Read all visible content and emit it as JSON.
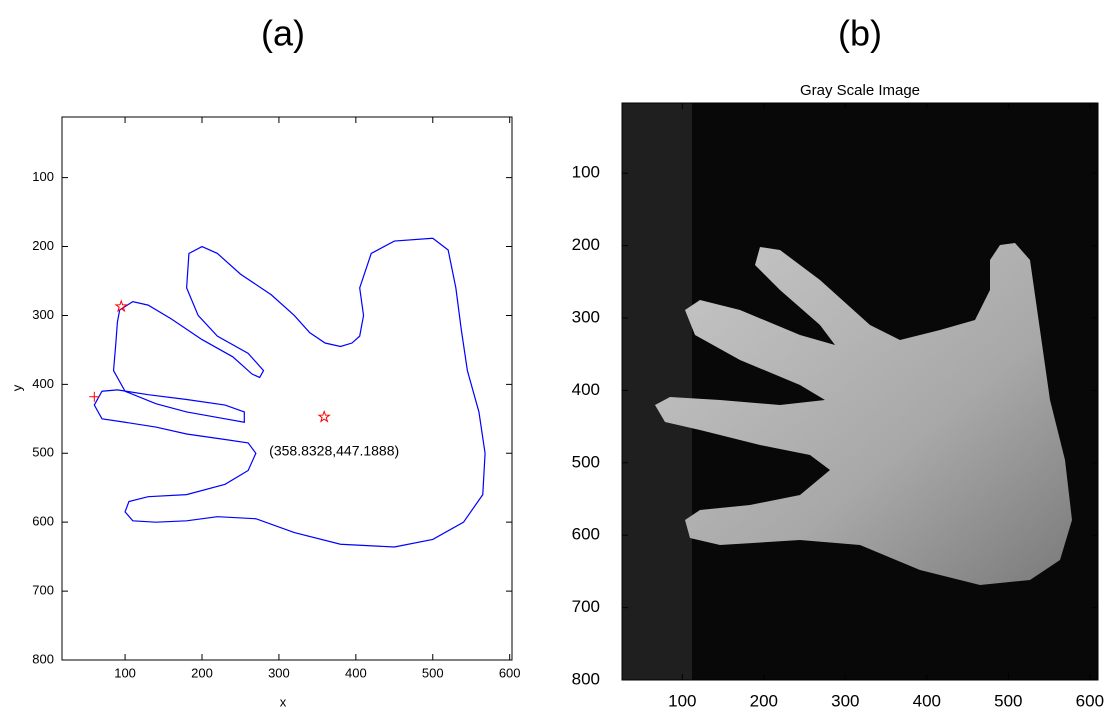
{
  "panels": [
    "(a)",
    "(b)"
  ],
  "chart_data": [
    {
      "type": "line",
      "xlabel": "x",
      "ylabel": "y",
      "xlim": [
        18,
        603
      ],
      "ylim": [
        12,
        800
      ],
      "y_reversed": true,
      "xticks": [
        100,
        200,
        300,
        400,
        500,
        600
      ],
      "yticks": [
        100,
        200,
        300,
        400,
        500,
        600,
        700,
        800
      ],
      "series": [
        {
          "color": "#0000ff",
          "marker": "none",
          "x": [
            500,
            520,
            530,
            537,
            545,
            560,
            568,
            565,
            540,
            500,
            450,
            380,
            320,
            270,
            220,
            180,
            140,
            110,
            100,
            105,
            130,
            180,
            230,
            260,
            270,
            260,
            230,
            180,
            140,
            100,
            70,
            60,
            70,
            90,
            130,
            180,
            230,
            255,
            255,
            230,
            180,
            140,
            100,
            85,
            88,
            90,
            93,
            110,
            130,
            160,
            200,
            240,
            265,
            275,
            280,
            260,
            220,
            195,
            180,
            183,
            200,
            220,
            250,
            290,
            320,
            340,
            360,
            380,
            395,
            405,
            410,
            405,
            420,
            450,
            500
          ],
          "y": [
            188,
            205,
            260,
            320,
            380,
            440,
            500,
            560,
            600,
            625,
            636,
            632,
            615,
            595,
            592,
            598,
            600,
            598,
            585,
            570,
            563,
            560,
            545,
            525,
            500,
            485,
            480,
            472,
            462,
            455,
            450,
            430,
            410,
            408,
            415,
            422,
            430,
            440,
            455,
            450,
            440,
            428,
            410,
            380,
            340,
            310,
            292,
            280,
            285,
            305,
            335,
            360,
            385,
            390,
            380,
            355,
            330,
            300,
            260,
            210,
            200,
            210,
            240,
            270,
            300,
            325,
            340,
            345,
            340,
            330,
            300,
            260,
            210,
            192,
            188
          ]
        },
        {
          "color": "#ff0000",
          "marker": "star",
          "x": [
            95
          ],
          "y": [
            287
          ]
        },
        {
          "color": "#ff0000",
          "marker": "plus",
          "x": [
            60
          ],
          "y": [
            418
          ]
        },
        {
          "color": "#ff0000",
          "marker": "star",
          "x": [
            358.8328
          ],
          "y": [
            447.1888
          ],
          "value_labels": [
            "(358.8328,447.1888)"
          ]
        }
      ]
    },
    {
      "type": "image",
      "title": "Gray Scale Image",
      "colormap": "gray",
      "xlim": [
        26,
        610
      ],
      "ylim": [
        3,
        800
      ],
      "y_reversed": true,
      "xticks": [
        100,
        200,
        300,
        400,
        500,
        600
      ],
      "yticks": [
        100,
        200,
        300,
        400,
        500,
        600,
        700,
        800
      ]
    }
  ]
}
